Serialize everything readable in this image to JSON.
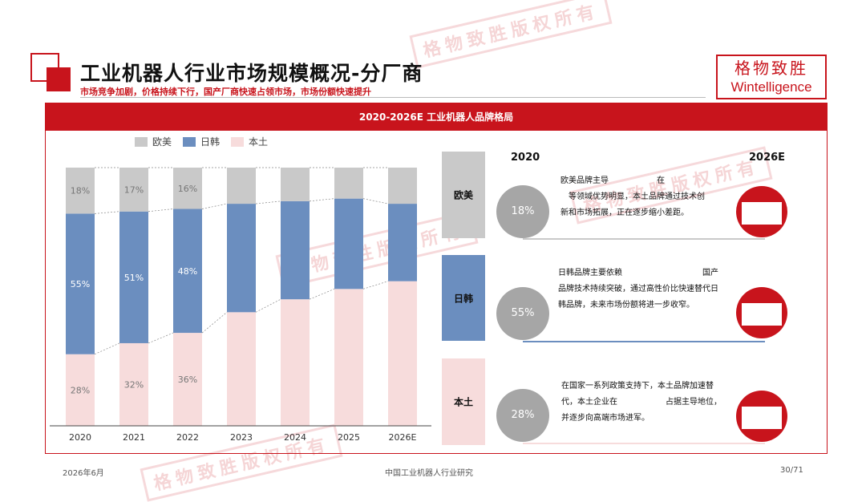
{
  "header": {
    "title": "工业机器人行业市场规模概况-分厂商",
    "subtitle": "市场竞争加剧，价格持续下行，国产厂商快速占领市场，市场份额快速提升"
  },
  "logo": {
    "cn": "格物致胜",
    "en": "Wintelligence"
  },
  "panel_title": "2020-2026E 工业机器人品牌格局",
  "watermark": "格物致胜版权所有",
  "colors": {
    "accent": "#c8141c",
    "western": "#c9c9c9",
    "jpkr": "#6b8ebf",
    "domestic": "#f7dcdc",
    "circle": "#a6a6a6"
  },
  "chart_data": {
    "type": "bar",
    "stacked": true,
    "normalized": true,
    "categories": [
      "2020",
      "2021",
      "2022",
      "2023",
      "2024",
      "2025",
      "2026E"
    ],
    "series": [
      {
        "name": "本土",
        "values": [
          28,
          32,
          36,
          44,
          49,
          53,
          56
        ],
        "labels": [
          "28%",
          "32%",
          "36%",
          "",
          "",
          "",
          ""
        ],
        "color": "#f7dcdc"
      },
      {
        "name": "日韩",
        "values": [
          55,
          51,
          48,
          42,
          38,
          35,
          30
        ],
        "labels": [
          "55%",
          "51%",
          "48%",
          "",
          "",
          "",
          ""
        ],
        "color": "#6b8ebf"
      },
      {
        "name": "欧美",
        "values": [
          18,
          17,
          16,
          14,
          13,
          12,
          14
        ],
        "labels": [
          "18%",
          "17%",
          "16%",
          "",
          "",
          "",
          ""
        ],
        "color": "#c9c9c9"
      }
    ],
    "legend": [
      "欧美",
      "日韩",
      "本土"
    ],
    "legend_position": "top",
    "ylim": [
      0,
      100
    ],
    "grid": false
  },
  "comparison": {
    "start_year": "2020",
    "end_year": "2026E",
    "rows": [
      {
        "label": "欧美",
        "value": "18%",
        "text_lines": [
          "欧美品牌主导　　　　　　在",
          "　等领域优势明显，本土品牌通过技术创",
          "新和市场拓展，正在逐步缩小差距。"
        ]
      },
      {
        "label": "日韩",
        "value": "55%",
        "text_lines": [
          "日韩品牌主要依赖　　　　　　　　　　国产",
          "品牌技术持续突破，通过高性价比快速替代日",
          "韩品牌，未来市场份额将进一步收窄。"
        ]
      },
      {
        "label": "本土",
        "value": "28%",
        "text_lines": [
          "在国家一系列政策支持下，本土品牌加速替",
          "代，本土企业在　　　　　　占据主导地位，",
          "并逐步向高端市场进军。"
        ]
      }
    ]
  },
  "footer": {
    "date": "2026年6月",
    "source": "中国工业机器人行业研究",
    "page": "30/71"
  }
}
